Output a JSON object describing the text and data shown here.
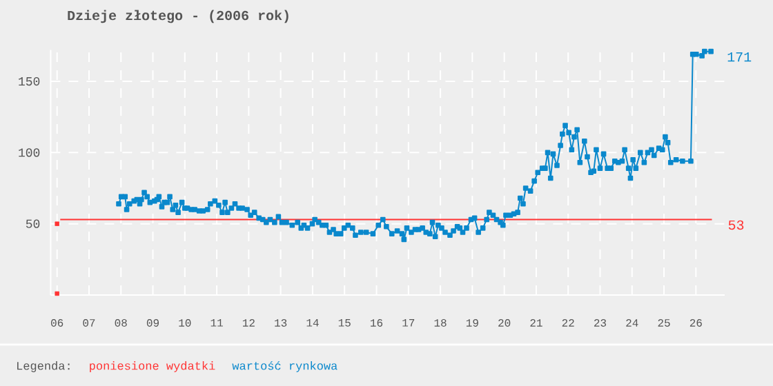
{
  "chart_data": {
    "type": "line",
    "title": "Dzieje złotego - (2006 rok)",
    "legend_title": "Legenda:",
    "legend": "bottom",
    "grid": true,
    "marker": "square",
    "xlim": [
      5.8,
      26.9
    ],
    "ylim": [
      0,
      172
    ],
    "xticks": [
      {
        "value": 6,
        "label": "06"
      },
      {
        "value": 7,
        "label": "07"
      },
      {
        "value": 8,
        "label": "08"
      },
      {
        "value": 9,
        "label": "09"
      },
      {
        "value": 10,
        "label": "10"
      },
      {
        "value": 11,
        "label": "11"
      },
      {
        "value": 12,
        "label": "12"
      },
      {
        "value": 13,
        "label": "13"
      },
      {
        "value": 14,
        "label": "14"
      },
      {
        "value": 15,
        "label": "15"
      },
      {
        "value": 16,
        "label": "16"
      },
      {
        "value": 17,
        "label": "17"
      },
      {
        "value": 18,
        "label": "18"
      },
      {
        "value": 19,
        "label": "19"
      },
      {
        "value": 20,
        "label": "20"
      },
      {
        "value": 21,
        "label": "21"
      },
      {
        "value": 22,
        "label": "22"
      },
      {
        "value": 23,
        "label": "23"
      },
      {
        "value": 24,
        "label": "24"
      },
      {
        "value": 25,
        "label": "25"
      },
      {
        "value": 26,
        "label": "26"
      }
    ],
    "yticks": [
      50,
      100,
      150
    ],
    "series": [
      {
        "name": "poniesione wydatki",
        "marker": "none",
        "color": "#ff3333",
        "x": [
          6.1,
          26.5
        ],
        "values": [
          53,
          53
        ],
        "value_labels": [
          null,
          "53"
        ]
      },
      {
        "type": "scatter",
        "color": "#ff3333",
        "x": [
          6,
          6
        ],
        "values": [
          1,
          50
        ]
      },
      {
        "name": "wartość rynkowa",
        "color": "#0a88cc",
        "x": [
          7.93,
          8.01,
          8.13,
          8.18,
          8.27,
          8.41,
          8.5,
          8.59,
          8.64,
          8.73,
          8.82,
          8.91,
          9.05,
          9.13,
          9.19,
          9.28,
          9.36,
          9.45,
          9.53,
          9.62,
          9.71,
          9.79,
          9.91,
          10.0,
          10.08,
          10.2,
          10.31,
          10.45,
          10.57,
          10.71,
          10.8,
          10.94,
          11.06,
          11.17,
          11.26,
          11.34,
          11.46,
          11.57,
          11.69,
          11.8,
          11.95,
          12.06,
          12.18,
          12.32,
          12.44,
          12.55,
          12.67,
          12.81,
          12.93,
          13.04,
          13.18,
          13.36,
          13.53,
          13.64,
          13.73,
          13.84,
          13.99,
          14.07,
          14.19,
          14.3,
          14.42,
          14.53,
          14.65,
          14.74,
          14.88,
          14.99,
          15.11,
          15.25,
          15.34,
          15.51,
          15.68,
          15.89,
          16.06,
          16.2,
          16.31,
          16.48,
          16.65,
          16.8,
          16.86,
          16.95,
          17.09,
          17.21,
          17.32,
          17.44,
          17.55,
          17.67,
          17.75,
          17.84,
          17.93,
          18.04,
          18.15,
          18.3,
          18.41,
          18.53,
          18.61,
          18.7,
          18.82,
          18.96,
          19.07,
          19.19,
          19.33,
          19.45,
          19.53,
          19.65,
          19.76,
          19.88,
          19.96,
          20.05,
          20.19,
          20.3,
          20.42,
          20.5,
          20.59,
          20.67,
          20.82,
          20.94,
          21.05,
          21.19,
          21.28,
          21.36,
          21.45,
          21.53,
          21.65,
          21.76,
          21.82,
          21.91,
          22.02,
          22.11,
          22.19,
          22.28,
          22.37,
          22.51,
          22.6,
          22.71,
          22.8,
          22.88,
          23.0,
          23.11,
          23.23,
          23.34,
          23.46,
          23.57,
          23.69,
          23.77,
          23.89,
          23.95,
          24.03,
          24.12,
          24.26,
          24.38,
          24.49,
          24.61,
          24.69,
          24.84,
          24.95,
          25.04,
          25.12,
          25.21,
          25.38,
          25.58,
          25.84,
          25.9,
          26.01,
          26.19,
          26.27,
          26.47
        ],
        "values": [
          64,
          69,
          69,
          60,
          64,
          66,
          67,
          64,
          67,
          72,
          69,
          65,
          66,
          67,
          69,
          62,
          65,
          65,
          69,
          60,
          63,
          58,
          65,
          61,
          61,
          60,
          60,
          59,
          59,
          60,
          64,
          66,
          63,
          58,
          65,
          58,
          61,
          64,
          61,
          61,
          60,
          56,
          58,
          54,
          53,
          51,
          53,
          51,
          55,
          51,
          51,
          49,
          51,
          47,
          49,
          47,
          50,
          53,
          51,
          49,
          49,
          44,
          46,
          43,
          43,
          47,
          49,
          47,
          42,
          44,
          44,
          43,
          49,
          53,
          48,
          43,
          45,
          43,
          39,
          47,
          44,
          46,
          46,
          47,
          44,
          43,
          51,
          41,
          49,
          47,
          44,
          42,
          45,
          48,
          47,
          44,
          47,
          53,
          54,
          44,
          47,
          53,
          58,
          56,
          53,
          51,
          49,
          56,
          56,
          57,
          58,
          68,
          64,
          75,
          73,
          80,
          86,
          89,
          89,
          100,
          82,
          99,
          91,
          105,
          113,
          119,
          114,
          102,
          111,
          116,
          93,
          108,
          97,
          86,
          87,
          102,
          89,
          99,
          89,
          89,
          94,
          93,
          94,
          102,
          89,
          82,
          95,
          89,
          100,
          93,
          100,
          102,
          98,
          103,
          102,
          111,
          107,
          93,
          95,
          94,
          94,
          169,
          169,
          168,
          171,
          171
        ],
        "value_labels": [
          null,
          null,
          null,
          null,
          null,
          null,
          null,
          null,
          null,
          null,
          null,
          null,
          null,
          null,
          null,
          null,
          null,
          null,
          null,
          null,
          null,
          null,
          null,
          null,
          null,
          null,
          null,
          null,
          null,
          null,
          null,
          null,
          null,
          null,
          null,
          null,
          null,
          null,
          null,
          null,
          null,
          null,
          null,
          null,
          null,
          null,
          null,
          null,
          null,
          null,
          null,
          null,
          null,
          null,
          null,
          null,
          null,
          null,
          null,
          null,
          null,
          null,
          null,
          null,
          null,
          null,
          null,
          null,
          null,
          null,
          null,
          null,
          null,
          null,
          null,
          null,
          null,
          null,
          null,
          null,
          null,
          null,
          null,
          null,
          null,
          null,
          null,
          null,
          null,
          null,
          null,
          null,
          null,
          null,
          null,
          null,
          null,
          null,
          null,
          null,
          null,
          null,
          null,
          null,
          null,
          null,
          null,
          null,
          null,
          null,
          null,
          null,
          null,
          null,
          null,
          null,
          null,
          null,
          null,
          null,
          null,
          null,
          null,
          null,
          null,
          null,
          null,
          null,
          null,
          null,
          null,
          null,
          null,
          null,
          null,
          null,
          null,
          null,
          null,
          null,
          null,
          null,
          null,
          null,
          null,
          null,
          null,
          null,
          null,
          null,
          null,
          null,
          null,
          null,
          null,
          null,
          null,
          null,
          null,
          null,
          null,
          null,
          null,
          null,
          null,
          "171"
        ]
      }
    ]
  }
}
